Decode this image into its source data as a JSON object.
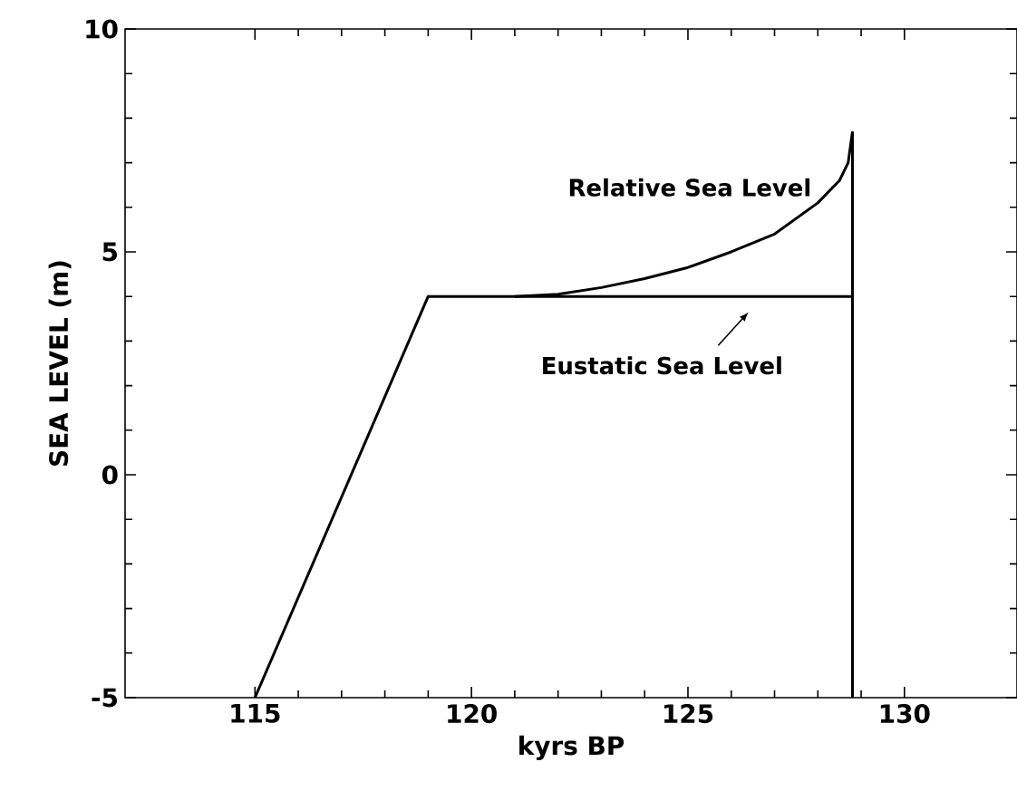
{
  "chart_data": {
    "type": "line",
    "xlabel": "kyrs BP",
    "ylabel": "SEA LEVEL (m)",
    "xlim": [
      112,
      132.6
    ],
    "ylim": [
      -5,
      10
    ],
    "xticks": [
      115,
      120,
      125,
      130
    ],
    "yticks": [
      -5,
      0,
      5,
      10
    ],
    "grid": false,
    "legend": false,
    "marker": "none",
    "line_style": "solid",
    "series": [
      {
        "color": "#000000",
        "x": [
          115,
          119,
          128.8
        ],
        "values": [
          -5,
          4,
          4
        ]
      },
      {
        "color": "#000000",
        "x": [
          121,
          122,
          123,
          124,
          125,
          126,
          127,
          128,
          128.5,
          128.7,
          128.8
        ],
        "values": [
          4,
          4.05,
          4.2,
          4.4,
          4.65,
          5.0,
          5.4,
          6.1,
          6.6,
          7.0,
          7.7
        ]
      },
      {
        "color": "#000000",
        "x": [
          128.8,
          128.8
        ],
        "values": [
          -5,
          7.7
        ]
      }
    ],
    "annotations": [
      {
        "text": "Relative Sea Level",
        "x": 128,
        "y": 6.1
      },
      {
        "text": "Eustatic Sea Level",
        "x": 126.4,
        "y": 4
      }
    ]
  }
}
